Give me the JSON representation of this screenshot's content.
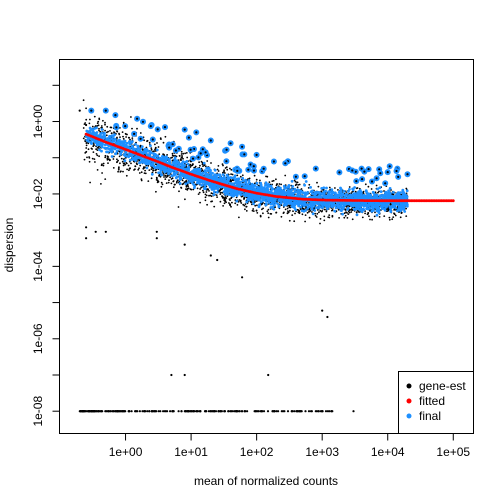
{
  "chart_data": {
    "type": "scatter",
    "title": "",
    "xlabel": "mean of normalized counts",
    "ylabel": "dispersion",
    "x_scale": "log10",
    "y_scale": "log10",
    "xlim": [
      0.1,
      200000
    ],
    "ylim": [
      2.5e-09,
      50
    ],
    "x_ticks": [
      {
        "value": 1,
        "label": "1e+00"
      },
      {
        "value": 10,
        "label": "1e+01"
      },
      {
        "value": 100,
        "label": "1e+02"
      },
      {
        "value": 1000,
        "label": "1e+03"
      },
      {
        "value": 10000,
        "label": "1e+04"
      },
      {
        "value": 100000,
        "label": "1e+05"
      }
    ],
    "y_ticks": [
      {
        "value": 1e-08,
        "label": "1e-08"
      },
      {
        "value": 1e-07,
        "label": ""
      },
      {
        "value": 1e-06,
        "label": "1e-06"
      },
      {
        "value": 1e-05,
        "label": ""
      },
      {
        "value": 0.0001,
        "label": "1e-04"
      },
      {
        "value": 0.001,
        "label": ""
      },
      {
        "value": 0.01,
        "label": "1e-02"
      },
      {
        "value": 0.1,
        "label": ""
      },
      {
        "value": 1,
        "label": "1e+00"
      },
      {
        "value": 10,
        "label": ""
      }
    ],
    "legend": {
      "position": "bottom-right",
      "entries": [
        {
          "label": "gene-est",
          "color": "#000000"
        },
        {
          "label": "fitted",
          "color": "#ff0000"
        },
        {
          "label": "final",
          "color": "#1e90ff"
        }
      ]
    },
    "fitted_curve": {
      "name": "fitted",
      "color": "#ff0000",
      "x": [
        0.25,
        0.5,
        1,
        2,
        3,
        5,
        10,
        20,
        50,
        100,
        200,
        500,
        1000,
        3000,
        10000,
        30000,
        100000
      ],
      "y": [
        0.45,
        0.27,
        0.17,
        0.105,
        0.08,
        0.055,
        0.035,
        0.023,
        0.014,
        0.0105,
        0.0085,
        0.0072,
        0.0068,
        0.0066,
        0.0065,
        0.0065,
        0.0065
      ]
    },
    "series": [
      {
        "name": "gene-est",
        "color": "#000000",
        "description_points": [
          {
            "x": 0.2,
            "y": 2.0
          },
          {
            "x": 0.3,
            "y": 2.0
          },
          {
            "x": 0.25,
            "y": 0.8
          },
          {
            "x": 0.25,
            "y": 0.0006
          },
          {
            "x": 0.25,
            "y": 0.0012
          },
          {
            "x": 0.35,
            "y": 0.0009
          },
          {
            "x": 0.5,
            "y": 0.0009
          },
          {
            "x": 3.0,
            "y": 0.0006
          },
          {
            "x": 3.0,
            "y": 0.0009
          },
          {
            "x": 8.0,
            "y": 0.0004
          },
          {
            "x": 20,
            "y": 0.0002
          },
          {
            "x": 25,
            "y": 0.00015
          },
          {
            "x": 60,
            "y": 5e-05
          },
          {
            "x": 1000,
            "y": 6e-06
          },
          {
            "x": 1200,
            "y": 4e-06
          },
          {
            "x": 5.0,
            "y": 1e-07
          },
          {
            "x": 8.0,
            "y": 1e-07
          },
          {
            "x": 150,
            "y": 1e-07
          }
        ],
        "floor_y": 1e-08,
        "floor_x_range": [
          0.2,
          1500
        ]
      },
      {
        "name": "final",
        "color": "#1e90ff",
        "description_points": [
          {
            "x": 0.3,
            "y": 2.0
          },
          {
            "x": 0.5,
            "y": 2.0
          },
          {
            "x": 0.7,
            "y": 1.5
          },
          {
            "x": 1.5,
            "y": 1.2
          },
          {
            "x": 2.5,
            "y": 0.8
          },
          {
            "x": 4,
            "y": 0.7
          },
          {
            "x": 8,
            "y": 0.6
          },
          {
            "x": 12,
            "y": 0.5
          },
          {
            "x": 20,
            "y": 0.3
          },
          {
            "x": 40,
            "y": 0.25
          },
          {
            "x": 60,
            "y": 0.2
          },
          {
            "x": 100,
            "y": 0.12
          },
          {
            "x": 300,
            "y": 0.08
          },
          {
            "x": 800,
            "y": 0.05
          },
          {
            "x": 4000,
            "y": 0.05
          },
          {
            "x": 10000,
            "y": 0.04
          },
          {
            "x": 20000,
            "y": 0.035
          }
        ]
      }
    ]
  }
}
